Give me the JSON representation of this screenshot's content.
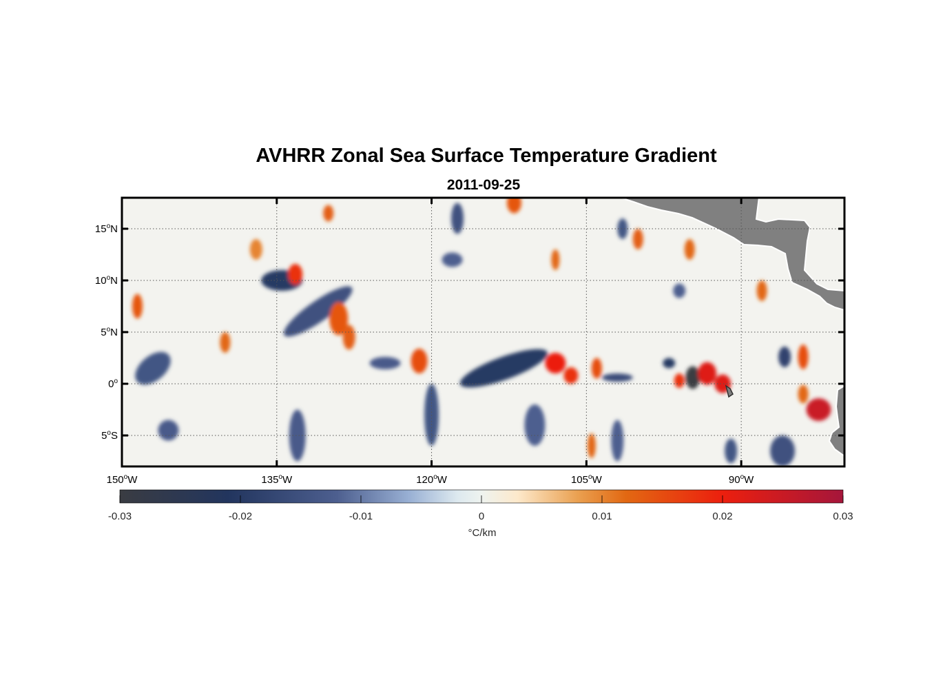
{
  "chart_data": {
    "type": "heatmap",
    "title": "AVHRR Zonal Sea Surface Temperature Gradient",
    "subtitle": "2011-09-25",
    "xlim": [
      -150,
      -80
    ],
    "ylim": [
      -8,
      18
    ],
    "x_ticks": [
      {
        "value": -150,
        "deg": "150",
        "hemi": "W"
      },
      {
        "value": -135,
        "deg": "135",
        "hemi": "W"
      },
      {
        "value": -120,
        "deg": "120",
        "hemi": "W"
      },
      {
        "value": -105,
        "deg": "105",
        "hemi": "W"
      },
      {
        "value": -90,
        "deg": "90",
        "hemi": "W"
      }
    ],
    "y_ticks": [
      {
        "value": 15,
        "deg": "15",
        "hemi": "N"
      },
      {
        "value": 10,
        "deg": "10",
        "hemi": "N"
      },
      {
        "value": 5,
        "deg": "5",
        "hemi": "N"
      },
      {
        "value": 0,
        "deg": "0",
        "hemi": ""
      },
      {
        "value": -5,
        "deg": "5",
        "hemi": "S"
      }
    ],
    "colorbar": {
      "range": [
        -0.03,
        0.03
      ],
      "ticks": [
        "-0.03",
        "-0.02",
        "-0.01",
        "0",
        "0.01",
        "0.02",
        "0.03"
      ],
      "tick_values": [
        -0.03,
        -0.02,
        -0.01,
        0,
        0.01,
        0.02,
        0.03
      ],
      "label": "°C/km",
      "colors": [
        {
          "v": -0.03,
          "c": "#3a3c42"
        },
        {
          "v": -0.021,
          "c": "#22355e"
        },
        {
          "v": -0.012,
          "c": "#4d5f8f"
        },
        {
          "v": -0.006,
          "c": "#99b0d4"
        },
        {
          "v": -0.002,
          "c": "#dde9ef"
        },
        {
          "v": 0.0,
          "c": "#eef3ef"
        },
        {
          "v": 0.003,
          "c": "#fde9cb"
        },
        {
          "v": 0.008,
          "c": "#eaa050"
        },
        {
          "v": 0.012,
          "c": "#e26812"
        },
        {
          "v": 0.02,
          "c": "#ec1f0e"
        },
        {
          "v": 0.03,
          "c": "#a5163b"
        }
      ]
    },
    "land_color": "#808080",
    "grid": true,
    "features": [
      {
        "lon": -134.5,
        "lat": 10.0,
        "value": -0.02,
        "rx": 2.0,
        "ry": 1.0
      },
      {
        "lon": -133.2,
        "lat": 10.6,
        "value": 0.018,
        "rx": 0.7,
        "ry": 1.0
      },
      {
        "lon": -131.0,
        "lat": 7.0,
        "value": -0.015,
        "rx": 4.0,
        "ry": 1.0,
        "angle": -35
      },
      {
        "lon": -129.0,
        "lat": 6.3,
        "value": 0.014,
        "rx": 0.9,
        "ry": 1.6
      },
      {
        "lon": -128.0,
        "lat": 4.5,
        "value": 0.013,
        "rx": 0.6,
        "ry": 1.2
      },
      {
        "lon": -124.5,
        "lat": 2.0,
        "value": -0.013,
        "rx": 1.5,
        "ry": 0.6
      },
      {
        "lon": -121.2,
        "lat": 2.2,
        "value": 0.015,
        "rx": 0.8,
        "ry": 1.2
      },
      {
        "lon": -113.0,
        "lat": 1.5,
        "value": -0.02,
        "rx": 4.5,
        "ry": 1.1,
        "angle": -20
      },
      {
        "lon": -108.0,
        "lat": 2.0,
        "value": 0.02,
        "rx": 1.0,
        "ry": 1.0
      },
      {
        "lon": -106.5,
        "lat": 0.8,
        "value": 0.018,
        "rx": 0.7,
        "ry": 0.8
      },
      {
        "lon": -104.0,
        "lat": 1.5,
        "value": 0.015,
        "rx": 0.5,
        "ry": 1.0
      },
      {
        "lon": -102.0,
        "lat": 0.6,
        "value": -0.016,
        "rx": 1.5,
        "ry": 0.4
      },
      {
        "lon": -94.7,
        "lat": 0.6,
        "value": -0.03,
        "rx": 0.7,
        "ry": 1.1
      },
      {
        "lon": -93.3,
        "lat": 1.0,
        "value": 0.022,
        "rx": 0.9,
        "ry": 1.1
      },
      {
        "lon": -91.8,
        "lat": 0.0,
        "value": 0.022,
        "rx": 0.8,
        "ry": 0.9
      },
      {
        "lon": -96.0,
        "lat": 0.3,
        "value": 0.018,
        "rx": 0.5,
        "ry": 0.7
      },
      {
        "lon": -97.0,
        "lat": 2.0,
        "value": -0.02,
        "rx": 0.6,
        "ry": 0.5
      },
      {
        "lon": -82.5,
        "lat": -2.5,
        "value": 0.025,
        "rx": 1.2,
        "ry": 1.1
      },
      {
        "lon": -84.0,
        "lat": 2.6,
        "value": 0.015,
        "rx": 0.5,
        "ry": 1.2
      },
      {
        "lon": -85.8,
        "lat": 2.6,
        "value": -0.018,
        "rx": 0.6,
        "ry": 1.0
      },
      {
        "lon": -130.0,
        "lat": 16.5,
        "value": 0.013,
        "rx": 0.5,
        "ry": 0.8
      },
      {
        "lon": -112.0,
        "lat": 17.5,
        "value": 0.014,
        "rx": 0.7,
        "ry": 1.0
      },
      {
        "lon": -117.5,
        "lat": 16.0,
        "value": -0.015,
        "rx": 0.6,
        "ry": 1.5
      },
      {
        "lon": -148.5,
        "lat": 7.5,
        "value": 0.014,
        "rx": 0.5,
        "ry": 1.2
      },
      {
        "lon": -147.0,
        "lat": 1.5,
        "value": -0.014,
        "rx": 2.0,
        "ry": 1.2,
        "angle": -40
      },
      {
        "lon": -133.0,
        "lat": -5.0,
        "value": -0.013,
        "rx": 0.8,
        "ry": 2.5
      },
      {
        "lon": -120.0,
        "lat": -3.0,
        "value": -0.014,
        "rx": 0.7,
        "ry": 3.0
      },
      {
        "lon": -110.0,
        "lat": -4.0,
        "value": -0.012,
        "rx": 1.0,
        "ry": 2.0
      },
      {
        "lon": -102.0,
        "lat": -5.5,
        "value": -0.012,
        "rx": 0.6,
        "ry": 2.0
      },
      {
        "lon": -91.0,
        "lat": -6.5,
        "value": -0.014,
        "rx": 0.6,
        "ry": 1.2
      },
      {
        "lon": -86.0,
        "lat": -6.5,
        "value": -0.015,
        "rx": 1.2,
        "ry": 1.5
      },
      {
        "lon": -84.0,
        "lat": -1.0,
        "value": 0.012,
        "rx": 0.5,
        "ry": 0.9
      },
      {
        "lon": -100.0,
        "lat": 14.0,
        "value": 0.013,
        "rx": 0.5,
        "ry": 1.0
      },
      {
        "lon": -95.0,
        "lat": 13.0,
        "value": 0.012,
        "rx": 0.5,
        "ry": 1.0
      },
      {
        "lon": -101.5,
        "lat": 15.0,
        "value": -0.014,
        "rx": 0.5,
        "ry": 1.0
      },
      {
        "lon": -145.5,
        "lat": -4.5,
        "value": -0.013,
        "rx": 1.0,
        "ry": 1.0,
        "angle": -30
      },
      {
        "lon": -140.0,
        "lat": 4.0,
        "value": 0.012,
        "rx": 0.5,
        "ry": 1.0
      },
      {
        "lon": -118.0,
        "lat": 12.0,
        "value": -0.012,
        "rx": 1.0,
        "ry": 0.7
      },
      {
        "lon": -96.0,
        "lat": 9.0,
        "value": -0.012,
        "rx": 0.6,
        "ry": 0.7
      },
      {
        "lon": -88.0,
        "lat": 9.0,
        "value": 0.012,
        "rx": 0.5,
        "ry": 1.0
      },
      {
        "lon": -108.0,
        "lat": 12.0,
        "value": 0.012,
        "rx": 0.4,
        "ry": 1.0
      },
      {
        "lon": -104.5,
        "lat": -6.0,
        "value": 0.012,
        "rx": 0.4,
        "ry": 1.2
      },
      {
        "lon": -137.0,
        "lat": 13.0,
        "value": 0.01,
        "rx": 0.6,
        "ry": 1.0
      }
    ]
  }
}
